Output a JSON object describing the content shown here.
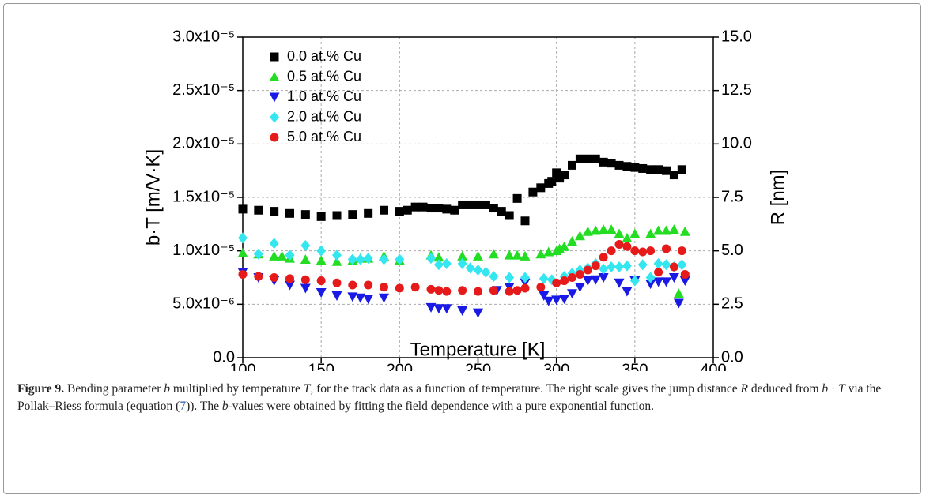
{
  "chart_data": {
    "type": "scatter",
    "xlabel": "Temperature [K]",
    "ylabel": "b·T [m/V·K]",
    "y2label": "R [nm]",
    "xlim": [
      100,
      400
    ],
    "xticks": [
      100,
      150,
      200,
      250,
      300,
      350,
      400
    ],
    "ylim": [
      0,
      3e-05
    ],
    "yticks": [
      {
        "value": 0,
        "label": "0.0"
      },
      {
        "value": 5e-06,
        "label": "5.0x10⁻⁶"
      },
      {
        "value": 1e-05,
        "label": "1.0x10⁻⁵"
      },
      {
        "value": 1.5e-05,
        "label": "1.5x10⁻⁵"
      },
      {
        "value": 2e-05,
        "label": "2.0x10⁻⁵"
      },
      {
        "value": 2.5e-05,
        "label": "2.5x10⁻⁵"
      },
      {
        "value": 3e-05,
        "label": "3.0x10⁻⁵"
      }
    ],
    "y2lim": [
      0,
      15
    ],
    "y2ticks": [
      {
        "value": 0,
        "label": "0.0"
      },
      {
        "value": 2.5,
        "label": "2.5"
      },
      {
        "value": 5,
        "label": "5.0"
      },
      {
        "value": 7.5,
        "label": "7.5"
      },
      {
        "value": 10,
        "label": "10.0"
      },
      {
        "value": 12.5,
        "label": "12.5"
      },
      {
        "value": 15,
        "label": "15.0"
      }
    ],
    "grid": true,
    "legend": "upper left",
    "series": [
      {
        "name": "0.0 at.% Cu",
        "color": "#000000",
        "marker": "square",
        "x": [
          100,
          110,
          120,
          130,
          140,
          150,
          160,
          170,
          180,
          190,
          200,
          205,
          210,
          215,
          220,
          225,
          230,
          235,
          240,
          245,
          250,
          255,
          260,
          265,
          270,
          275,
          280,
          285,
          290,
          295,
          297,
          300,
          302,
          305,
          310,
          315,
          320,
          325,
          330,
          335,
          340,
          345,
          350,
          355,
          360,
          365,
          370,
          375,
          380
        ],
        "values": [
          1.39e-05,
          1.38e-05,
          1.37e-05,
          1.35e-05,
          1.34e-05,
          1.32e-05,
          1.33e-05,
          1.34e-05,
          1.35e-05,
          1.38e-05,
          1.37e-05,
          1.38e-05,
          1.41e-05,
          1.41e-05,
          1.4e-05,
          1.4e-05,
          1.39e-05,
          1.38e-05,
          1.43e-05,
          1.43e-05,
          1.43e-05,
          1.43e-05,
          1.4e-05,
          1.37e-05,
          1.33e-05,
          1.49e-05,
          1.28e-05,
          1.55e-05,
          1.59e-05,
          1.63e-05,
          1.65e-05,
          1.73e-05,
          1.68e-05,
          1.71e-05,
          1.8e-05,
          1.86e-05,
          1.86e-05,
          1.86e-05,
          1.83e-05,
          1.82e-05,
          1.8e-05,
          1.79e-05,
          1.78e-05,
          1.77e-05,
          1.76e-05,
          1.76e-05,
          1.75e-05,
          1.71e-05,
          1.76e-05
        ]
      },
      {
        "name": "0.5 at.% Cu",
        "color": "#22dd22",
        "marker": "triangle-up",
        "x": [
          100,
          110,
          120,
          125,
          130,
          140,
          150,
          160,
          170,
          175,
          180,
          190,
          200,
          220,
          225,
          240,
          250,
          260,
          270,
          275,
          280,
          290,
          295,
          300,
          302,
          305,
          310,
          315,
          320,
          325,
          330,
          335,
          340,
          345,
          350,
          360,
          365,
          370,
          375,
          378,
          382
        ],
        "values": [
          9.8e-06,
          9.7e-06,
          9.5e-06,
          9.5e-06,
          9.3e-06,
          9.2e-06,
          9.1e-06,
          9e-06,
          9.1e-06,
          9.3e-06,
          9.3e-06,
          9.5e-06,
          9.1e-06,
          9.6e-06,
          9.4e-06,
          9.5e-06,
          9.5e-06,
          9.7e-06,
          9.6e-06,
          9.6e-06,
          9.5e-06,
          9.7e-06,
          9.9e-06,
          1e-05,
          1.02e-05,
          1.04e-05,
          1.09e-05,
          1.14e-05,
          1.18e-05,
          1.19e-05,
          1.2e-05,
          1.2e-05,
          1.16e-05,
          1.12e-05,
          1.16e-05,
          1.16e-05,
          1.19e-05,
          1.19e-05,
          1.2e-05,
          6e-06,
          1.18e-05
        ]
      },
      {
        "name": "1.0 at.% Cu",
        "color": "#1a1ae6",
        "marker": "triangle-down",
        "x": [
          100,
          110,
          120,
          130,
          140,
          150,
          160,
          170,
          175,
          180,
          190,
          220,
          225,
          230,
          240,
          250,
          262,
          270,
          280,
          292,
          295,
          300,
          305,
          310,
          315,
          320,
          325,
          330,
          340,
          345,
          350,
          360,
          365,
          370,
          375,
          378,
          382
        ],
        "values": [
          8e-06,
          7.5e-06,
          7.2e-06,
          6.8e-06,
          6.5e-06,
          6.1e-06,
          5.8e-06,
          5.7e-06,
          5.6e-06,
          5.5e-06,
          5.6e-06,
          4.7e-06,
          4.6e-06,
          4.6e-06,
          4.4e-06,
          4.2e-06,
          6.3e-06,
          6.6e-06,
          7e-06,
          5.8e-06,
          5.3e-06,
          5.4e-06,
          5.5e-06,
          6e-06,
          6.6e-06,
          7.2e-06,
          7.3e-06,
          7.5e-06,
          7e-06,
          6.2e-06,
          7.2e-06,
          6.9e-06,
          7.1e-06,
          7.1e-06,
          7.5e-06,
          5.1e-06,
          7.2e-06
        ]
      },
      {
        "name": "2.0 at.% Cu",
        "color": "#33e6f0",
        "marker": "diamond",
        "x": [
          100,
          110,
          120,
          130,
          140,
          150,
          160,
          170,
          175,
          180,
          190,
          200,
          220,
          225,
          230,
          240,
          245,
          250,
          255,
          260,
          270,
          280,
          292,
          297,
          305,
          310,
          315,
          320,
          325,
          330,
          335,
          340,
          345,
          350,
          355,
          360,
          365,
          370,
          375,
          380
        ],
        "values": [
          1.12e-05,
          9.7e-06,
          1.07e-05,
          9.6e-06,
          1.05e-05,
          1e-05,
          9.6e-06,
          9.2e-06,
          9.2e-06,
          9.3e-06,
          9.2e-06,
          9.2e-06,
          9.3e-06,
          8.7e-06,
          8.8e-06,
          8.8e-06,
          8.4e-06,
          8.2e-06,
          8e-06,
          7.6e-06,
          7.5e-06,
          7.5e-06,
          7.4e-06,
          7.3e-06,
          7.6e-06,
          7.9e-06,
          8.2e-06,
          8.4e-06,
          8.8e-06,
          8.3e-06,
          8.5e-06,
          8.5e-06,
          8.6e-06,
          7.2e-06,
          8.7e-06,
          7.5e-06,
          8.8e-06,
          8.7e-06,
          8.5e-06,
          8.7e-06
        ]
      },
      {
        "name": "5.0 at.% Cu",
        "color": "#e61a1a",
        "marker": "circle",
        "x": [
          100,
          110,
          120,
          130,
          140,
          150,
          160,
          170,
          180,
          190,
          200,
          210,
          220,
          225,
          230,
          240,
          250,
          260,
          270,
          275,
          280,
          290,
          300,
          305,
          310,
          315,
          320,
          325,
          330,
          335,
          340,
          345,
          350,
          355,
          360,
          365,
          370,
          375,
          380,
          382
        ],
        "values": [
          7.8e-06,
          7.6e-06,
          7.5e-06,
          7.4e-06,
          7.3e-06,
          7.2e-06,
          7e-06,
          6.8e-06,
          6.8e-06,
          6.6e-06,
          6.5e-06,
          6.6e-06,
          6.4e-06,
          6.3e-06,
          6.2e-06,
          6.3e-06,
          6.2e-06,
          6.3e-06,
          6.2e-06,
          6.3e-06,
          6.5e-06,
          6.6e-06,
          7e-06,
          7.2e-06,
          7.5e-06,
          7.8e-06,
          8.2e-06,
          8.6e-06,
          9.4e-06,
          1e-05,
          1.06e-05,
          1.04e-05,
          1e-05,
          9.9e-06,
          1e-05,
          8e-06,
          1.02e-05,
          8.5e-06,
          1e-05,
          7.8e-06
        ]
      }
    ]
  },
  "caption": {
    "parts": [
      "Figure 9.",
      "Bending parameter",
      "b",
      "multiplied by temperature",
      "T",
      ", for the track data as a function of temperature. The right scale gives the jump distance",
      "R",
      "deduced from",
      "b",
      " · ",
      "T",
      "via the Pollak–Riess formula (equation (",
      "7",
      ")). The",
      "b",
      "-values were obtained by fitting the field dependence with a pure exponential function."
    ]
  }
}
